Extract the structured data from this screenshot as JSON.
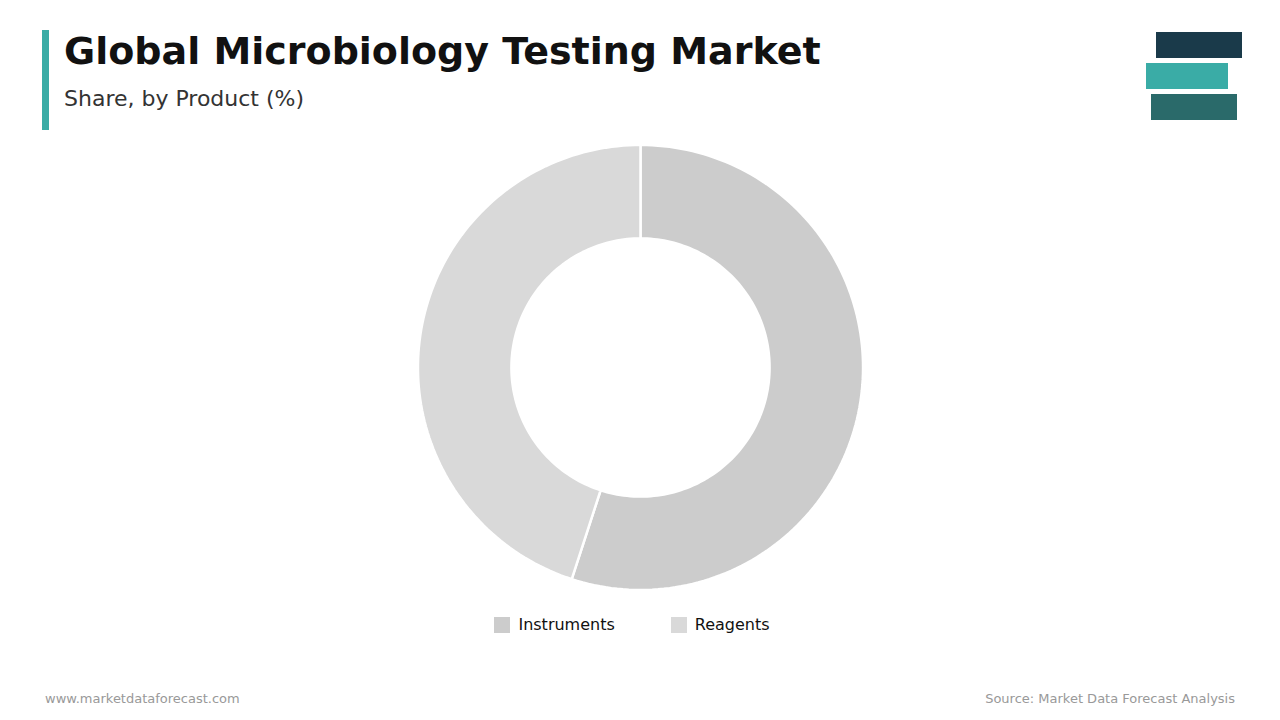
{
  "chart_data": {
    "type": "donut",
    "title": "Global Microbiology Testing Market",
    "subtitle": "Share, by Product (%)",
    "categories": [
      "Instruments",
      "Reagents"
    ],
    "values": [
      55,
      45
    ],
    "colors": [
      "#cccccc",
      "#d9d9d9"
    ],
    "legend": "bottom",
    "annotations": [
      "www.marketdataforecast.com",
      "Source: Market Data Forecast Analysis"
    ]
  }
}
